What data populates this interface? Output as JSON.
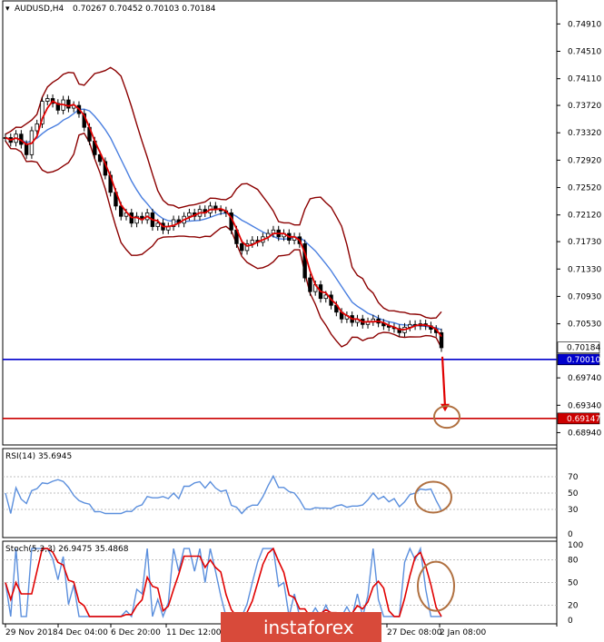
{
  "header": {
    "symbol": "AUDUSD,H4",
    "ohlc": "0.70267 0.70452 0.70103 0.70184"
  },
  "watermark": "instaforex",
  "chart_data": {
    "type": "candlestick",
    "instrument": "AUDUSD,H4",
    "price_axis": {
      "ticks": [
        "0.74910",
        "0.74510",
        "0.74110",
        "0.73720",
        "0.73320",
        "0.72920",
        "0.72520",
        "0.72120",
        "0.71730",
        "0.71330",
        "0.70930",
        "0.70530",
        "0.69740",
        "0.69340",
        "0.68940"
      ],
      "ylim": [
        0.688,
        0.7518
      ]
    },
    "price_tags": [
      {
        "label": "0.70184",
        "value": 0.70184,
        "color": "#000000",
        "bg": "#ffffff"
      },
      {
        "label": "0.70010",
        "value": 0.7001,
        "color": "#ffffff",
        "bg": "#0000cc"
      },
      {
        "label": "0.69147",
        "value": 0.69147,
        "color": "#ffffff",
        "bg": "#cc0000"
      }
    ],
    "horizontal_levels": [
      {
        "value": 0.7001,
        "color": "#0000cc"
      },
      {
        "value": 0.69147,
        "color": "#cc0000"
      }
    ],
    "x_labels": [
      "29 Nov 2018",
      "4 Dec 04:00",
      "6 Dec 20:00",
      "11 Dec 12:00",
      "27 Dec 08:00",
      "2 Jan 08:00"
    ],
    "close_series": [
      0.7325,
      0.7318,
      0.733,
      0.7315,
      0.73,
      0.7335,
      0.7345,
      0.7378,
      0.7382,
      0.7375,
      0.7365,
      0.738,
      0.7368,
      0.7372,
      0.736,
      0.734,
      0.732,
      0.73,
      0.729,
      0.727,
      0.7245,
      0.7225,
      0.721,
      0.7215,
      0.72,
      0.721,
      0.7205,
      0.7215,
      0.7195,
      0.72,
      0.719,
      0.7195,
      0.7205,
      0.72,
      0.721,
      0.7215,
      0.721,
      0.722,
      0.7215,
      0.7225,
      0.722,
      0.7218,
      0.7215,
      0.719,
      0.717,
      0.716,
      0.717,
      0.7175,
      0.7172,
      0.718,
      0.7185,
      0.719,
      0.718,
      0.7185,
      0.7175,
      0.718,
      0.717,
      0.712,
      0.71,
      0.711,
      0.709,
      0.7095,
      0.708,
      0.707,
      0.706,
      0.7065,
      0.7055,
      0.706,
      0.7052,
      0.7056,
      0.706,
      0.7054,
      0.705,
      0.7048,
      0.7046,
      0.704,
      0.7048,
      0.7052,
      0.705,
      0.7053,
      0.705,
      0.7045,
      0.704,
      0.7018
    ],
    "rsi": {
      "label": "RSI(14) 35.6945",
      "levels": [
        70,
        50,
        30
      ],
      "ylim": [
        0,
        100
      ],
      "ticks": [
        "70",
        "50",
        "30",
        "0"
      ]
    },
    "stoch": {
      "label": "Stoch(5,3,3) 26.9475 35.4868",
      "levels": [
        80,
        50,
        20
      ],
      "ylim": [
        0,
        100
      ],
      "ticks": [
        "100",
        "80",
        "50",
        "20",
        "0"
      ]
    }
  }
}
